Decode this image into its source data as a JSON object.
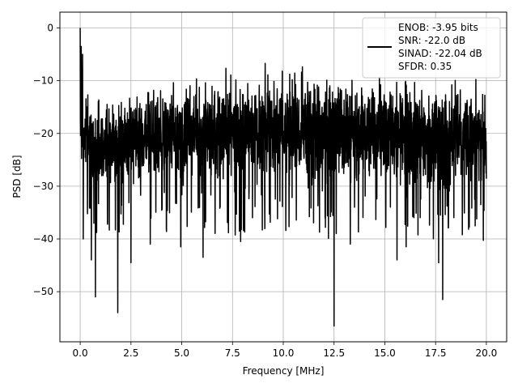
{
  "chart_data": {
    "type": "line",
    "title": "",
    "xlabel": "Frequency [MHz]",
    "ylabel": "PSD [dB]",
    "xlim": [
      -1.0,
      21.0
    ],
    "ylim": [
      -59.5,
      3.0
    ],
    "x_ticks": [
      0.0,
      2.5,
      5.0,
      7.5,
      10.0,
      12.5,
      15.0,
      17.5,
      20.0
    ],
    "x_tick_labels": [
      "0.0",
      "2.5",
      "5.0",
      "7.5",
      "10.0",
      "12.5",
      "15.0",
      "17.5",
      "20.0"
    ],
    "y_ticks": [
      0,
      -10,
      -20,
      -30,
      -40,
      -50
    ],
    "y_tick_labels": [
      "0",
      "−10",
      "−20",
      "−30",
      "−40",
      "−50"
    ],
    "grid": true,
    "line_color": "#000000",
    "legend": {
      "placement": "upper-right",
      "entries": [
        "ENOB: -3.95 bits",
        "SNR: -22.0 dB",
        "SINAD: -22.04 dB",
        "SFDR: 0.35"
      ]
    },
    "series": [
      {
        "x_range": [
          0.0,
          20.0
        ],
        "band_envelope": [
          {
            "x": 0.0,
            "upper": -2,
            "lower": -28
          },
          {
            "x": 0.2,
            "upper": -12,
            "lower": -30
          },
          {
            "x": 1.0,
            "upper": -12,
            "lower": -32
          },
          {
            "x": 2.0,
            "upper": -12,
            "lower": -32
          },
          {
            "x": 3.0,
            "upper": -10,
            "lower": -31
          },
          {
            "x": 4.0,
            "upper": -9,
            "lower": -31
          },
          {
            "x": 5.0,
            "upper": -8,
            "lower": -31
          },
          {
            "x": 6.0,
            "upper": -8,
            "lower": -31
          },
          {
            "x": 7.0,
            "upper": -7,
            "lower": -31
          },
          {
            "x": 8.0,
            "upper": -7,
            "lower": -32
          },
          {
            "x": 9.0,
            "upper": -7,
            "lower": -31
          },
          {
            "x": 10.0,
            "upper": -7,
            "lower": -31
          },
          {
            "x": 11.0,
            "upper": -7,
            "lower": -32
          },
          {
            "x": 12.0,
            "upper": -7,
            "lower": -32
          },
          {
            "x": 13.0,
            "upper": -8,
            "lower": -32
          },
          {
            "x": 14.0,
            "upper": -8,
            "lower": -32
          },
          {
            "x": 15.0,
            "upper": -8,
            "lower": -32
          },
          {
            "x": 16.0,
            "upper": -8,
            "lower": -32
          },
          {
            "x": 17.0,
            "upper": -9,
            "lower": -33
          },
          {
            "x": 18.0,
            "upper": -9,
            "lower": -33
          },
          {
            "x": 19.0,
            "upper": -9,
            "lower": -33
          },
          {
            "x": 20.0,
            "upper": -10,
            "lower": -33
          }
        ],
        "peaks": [
          {
            "x": 0.0,
            "y": 0.0
          },
          {
            "x": 0.05,
            "y": -3.5
          },
          {
            "x": 0.12,
            "y": -5.0
          }
        ],
        "dips": [
          {
            "x": 0.15,
            "y": -40.0
          },
          {
            "x": 0.55,
            "y": -44.0
          },
          {
            "x": 0.75,
            "y": -51.0
          },
          {
            "x": 1.85,
            "y": -54.0
          },
          {
            "x": 2.5,
            "y": -44.5
          },
          {
            "x": 3.45,
            "y": -41.0
          },
          {
            "x": 4.95,
            "y": -41.5
          },
          {
            "x": 6.05,
            "y": -43.5
          },
          {
            "x": 7.9,
            "y": -40.5
          },
          {
            "x": 12.5,
            "y": -56.5
          },
          {
            "x": 13.3,
            "y": -41.0
          },
          {
            "x": 15.6,
            "y": -44.0
          },
          {
            "x": 16.05,
            "y": -41.5
          },
          {
            "x": 17.65,
            "y": -44.5
          },
          {
            "x": 17.85,
            "y": -51.5
          }
        ]
      }
    ]
  }
}
